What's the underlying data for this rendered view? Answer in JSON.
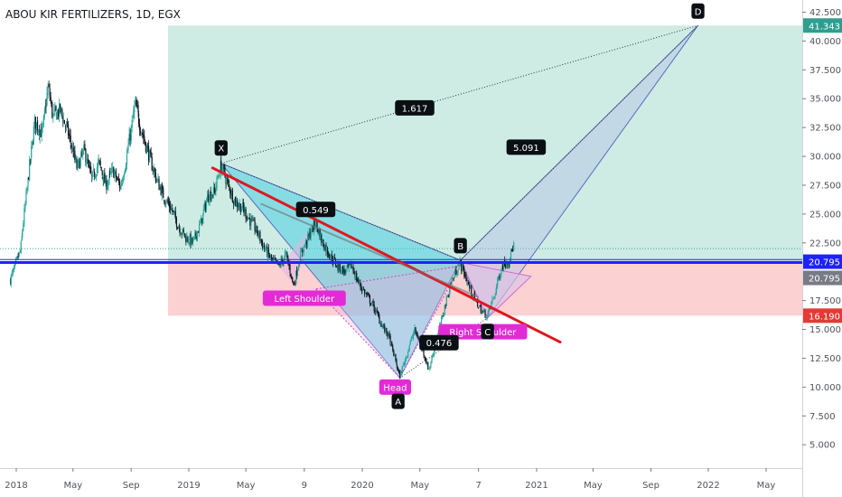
{
  "header": {
    "symbol_title": "ABOU KIR FERTILIZERS, 1D, EGX"
  },
  "colors": {
    "candle_up": "#26a69a",
    "candle_down": "#131722",
    "target_zone": "#b9e4d8",
    "risk_zone": "#f9c2c2",
    "pattern_fill": "#4dd0e1",
    "neckline": "#e0171f",
    "level_line": "#1e22ff",
    "label_black": "#0a0f14",
    "label_magenta": "#e22bd6"
  },
  "chart_data": {
    "type": "line",
    "title": "ABOU KIR FERTILIZERS, 1D, EGX",
    "x_ticks": [
      "2018",
      "May",
      "Sep",
      "2019",
      "May",
      "9",
      "2020",
      "May",
      "7",
      "2021",
      "May",
      "Sep",
      "2022",
      "May"
    ],
    "y_ticks": [
      "42.500",
      "40.000",
      "37.500",
      "35.000",
      "32.500",
      "30.000",
      "27.500",
      "25.000",
      "22.500",
      "17.500",
      "15.000",
      "12.500",
      "10.000",
      "7.500",
      "5.000"
    ],
    "ylim": [
      5,
      43.5
    ],
    "price_labels": [
      {
        "text": "41.343",
        "value": 41.343,
        "color": "#2e9e8f"
      },
      {
        "text": "20.795",
        "value": 20.795,
        "color": "#1e22ff"
      },
      {
        "text": "20.795",
        "value": 20.795,
        "color": "#787b86"
      },
      {
        "text": "16.190",
        "value": 16.19,
        "color": "#e53935"
      }
    ],
    "xabcd": {
      "points": [
        {
          "name": "X",
          "date": "2019-03-10",
          "value": 29.4
        },
        {
          "name": "A",
          "date": "2020-03-20",
          "value": 10.8
        },
        {
          "name": "B",
          "date": "2020-07-25",
          "value": 21.0
        },
        {
          "name": "C",
          "date": "2020-09-20",
          "value": 16.0
        },
        {
          "name": "D",
          "date": "2021-12-10",
          "value": 41.343
        }
      ],
      "ratios": [
        {
          "text": "0.549"
        },
        {
          "text": "0.476"
        },
        {
          "text": "1.617"
        },
        {
          "text": "5.091"
        }
      ]
    },
    "head_and_shoulders": [
      "Left Shoulder",
      "Head",
      "Right Shoulder"
    ],
    "horizontal_level": 20.795,
    "target": 41.343,
    "stop": 16.19,
    "price_series": [
      {
        "date": "2017-12-20",
        "value": 19.3
      },
      {
        "date": "2018-01-10",
        "value": 21.8
      },
      {
        "date": "2018-01-25",
        "value": 27.5
      },
      {
        "date": "2018-02-10",
        "value": 33.0
      },
      {
        "date": "2018-02-25",
        "value": 32.0
      },
      {
        "date": "2018-03-10",
        "value": 36.0
      },
      {
        "date": "2018-03-20",
        "value": 33.5
      },
      {
        "date": "2018-04-05",
        "value": 34.0
      },
      {
        "date": "2018-04-25",
        "value": 31.5
      },
      {
        "date": "2018-05-10",
        "value": 29.0
      },
      {
        "date": "2018-05-25",
        "value": 30.5
      },
      {
        "date": "2018-06-10",
        "value": 28.0
      },
      {
        "date": "2018-06-25",
        "value": 29.5
      },
      {
        "date": "2018-07-10",
        "value": 27.5
      },
      {
        "date": "2018-07-25",
        "value": 28.8
      },
      {
        "date": "2018-08-10",
        "value": 27.3
      },
      {
        "date": "2018-08-25",
        "value": 30.5
      },
      {
        "date": "2018-09-10",
        "value": 34.5
      },
      {
        "date": "2018-09-25",
        "value": 32.0
      },
      {
        "date": "2018-10-10",
        "value": 30.0
      },
      {
        "date": "2018-10-25",
        "value": 28.0
      },
      {
        "date": "2018-11-10",
        "value": 26.5
      },
      {
        "date": "2018-11-25",
        "value": 25.5
      },
      {
        "date": "2018-12-10",
        "value": 24.0
      },
      {
        "date": "2018-12-25",
        "value": 23.0
      },
      {
        "date": "2019-01-10",
        "value": 22.5
      },
      {
        "date": "2019-01-25",
        "value": 24.0
      },
      {
        "date": "2019-02-10",
        "value": 26.5
      },
      {
        "date": "2019-02-25",
        "value": 27.0
      },
      {
        "date": "2019-03-10",
        "value": 29.3
      },
      {
        "date": "2019-03-25",
        "value": 27.5
      },
      {
        "date": "2019-04-10",
        "value": 26.0
      },
      {
        "date": "2019-04-25",
        "value": 25.5
      },
      {
        "date": "2019-05-10",
        "value": 24.5
      },
      {
        "date": "2019-05-25",
        "value": 23.5
      },
      {
        "date": "2019-06-10",
        "value": 22.0
      },
      {
        "date": "2019-06-25",
        "value": 21.0
      },
      {
        "date": "2019-07-10",
        "value": 20.5
      },
      {
        "date": "2019-07-25",
        "value": 21.5
      },
      {
        "date": "2019-08-10",
        "value": 18.8
      },
      {
        "date": "2019-08-25",
        "value": 21.5
      },
      {
        "date": "2019-09-10",
        "value": 23.0
      },
      {
        "date": "2019-09-25",
        "value": 24.3
      },
      {
        "date": "2019-10-10",
        "value": 22.5
      },
      {
        "date": "2019-10-25",
        "value": 21.5
      },
      {
        "date": "2019-11-10",
        "value": 20.5
      },
      {
        "date": "2019-11-25",
        "value": 20.0
      },
      {
        "date": "2019-12-10",
        "value": 20.5
      },
      {
        "date": "2019-12-25",
        "value": 19.0
      },
      {
        "date": "2020-01-10",
        "value": 18.0
      },
      {
        "date": "2020-01-25",
        "value": 17.0
      },
      {
        "date": "2020-02-10",
        "value": 15.5
      },
      {
        "date": "2020-02-25",
        "value": 14.5
      },
      {
        "date": "2020-03-10",
        "value": 12.5
      },
      {
        "date": "2020-03-20",
        "value": 10.9
      },
      {
        "date": "2020-04-05",
        "value": 13.0
      },
      {
        "date": "2020-04-20",
        "value": 15.0
      },
      {
        "date": "2020-05-05",
        "value": 13.5
      },
      {
        "date": "2020-05-20",
        "value": 11.5
      },
      {
        "date": "2020-06-05",
        "value": 14.0
      },
      {
        "date": "2020-06-20",
        "value": 16.5
      },
      {
        "date": "2020-07-05",
        "value": 19.0
      },
      {
        "date": "2020-07-25",
        "value": 20.8
      },
      {
        "date": "2020-08-10",
        "value": 19.0
      },
      {
        "date": "2020-08-25",
        "value": 17.5
      },
      {
        "date": "2020-09-10",
        "value": 16.5
      },
      {
        "date": "2020-09-20",
        "value": 16.2
      },
      {
        "date": "2020-10-05",
        "value": 18.0
      },
      {
        "date": "2020-10-20",
        "value": 20.5
      },
      {
        "date": "2020-11-05",
        "value": 21.0
      },
      {
        "date": "2020-11-15",
        "value": 22.5
      }
    ]
  }
}
